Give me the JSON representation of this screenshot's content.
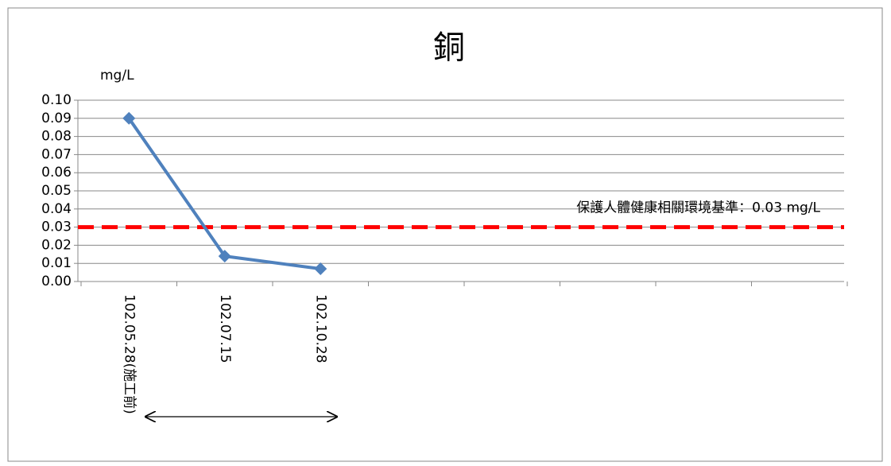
{
  "chart_data": {
    "type": "line",
    "title": "銅",
    "y_label": "mg/L",
    "categories": [
      "102.05.28(施工前)",
      "102.07.15",
      "102.10.28",
      null,
      null,
      null,
      null,
      null
    ],
    "series": [
      {
        "color": "#4f81bd",
        "values": [
          0.09,
          0.014,
          0.007,
          null,
          null,
          null,
          null,
          null
        ]
      }
    ],
    "ylim": [
      0,
      0.1
    ],
    "yticks": [
      {
        "value": 0,
        "label": "0.00"
      },
      0.01,
      0.02,
      0.03,
      0.04,
      0.05,
      0.06,
      0.07,
      0.08,
      0.09,
      {
        "value": 0.1,
        "label": "0.10"
      }
    ],
    "grid": true,
    "reference_line": {
      "value": 0.03,
      "color": "#ff0000",
      "label": "保護人體健康相關環境基準：0.03 mg/L"
    }
  }
}
